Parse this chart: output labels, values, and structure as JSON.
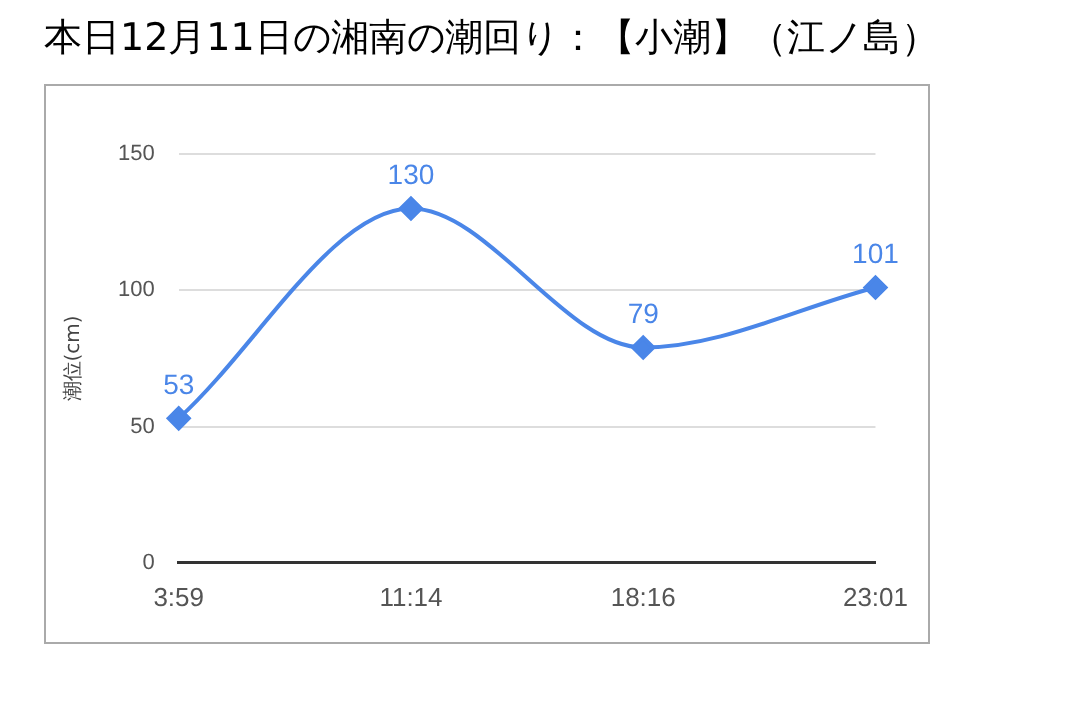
{
  "chart_data": {
    "type": "line",
    "title": "本日12月11日の湘南の潮回り：【小潮】（江ノ島）",
    "ylabel": "潮位(cm)",
    "categories": [
      "3:59",
      "11:14",
      "18:16",
      "23:01"
    ],
    "series": [
      {
        "color": "#4a86e8",
        "values": [
          53,
          130,
          79,
          101
        ]
      }
    ],
    "ylim": [
      0,
      150
    ],
    "yticks": [
      0,
      50,
      100,
      150
    ],
    "grid": "y",
    "legend": false,
    "marker": "diamond",
    "line_style": "solid",
    "data_labels": true
  }
}
